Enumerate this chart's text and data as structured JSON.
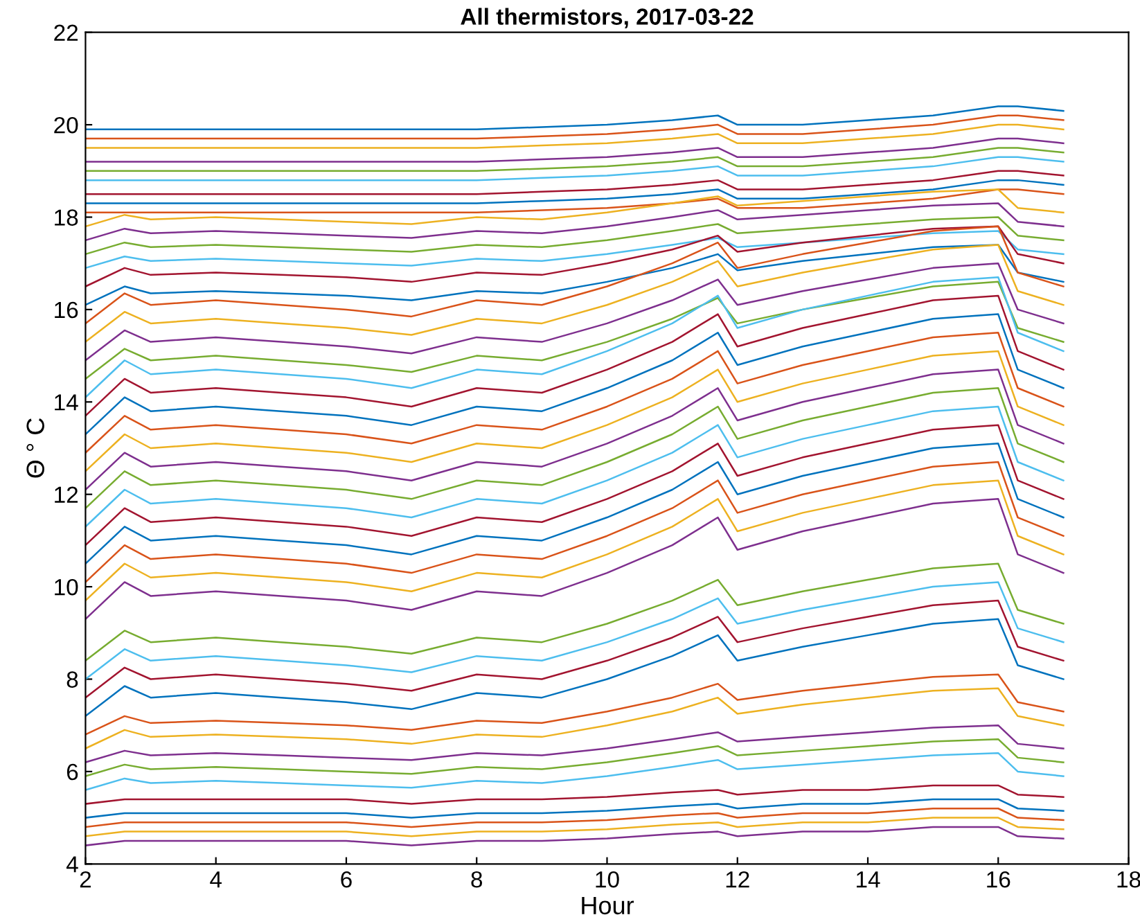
{
  "chart_data": {
    "type": "line",
    "title": "All thermistors, 2017-03-22",
    "xlabel": "Hour",
    "ylabel": "Θ ° C",
    "xlim": [
      2,
      18
    ],
    "xticks": [
      2,
      4,
      6,
      8,
      10,
      12,
      14,
      16,
      18
    ],
    "ylim": [
      4,
      22
    ],
    "yticks": [
      4,
      6,
      8,
      10,
      12,
      14,
      16,
      18,
      20,
      22
    ],
    "grid": false,
    "legend": false,
    "x": [
      2,
      2.6,
      3,
      4,
      5,
      6,
      7,
      8,
      9,
      10,
      11,
      11.7,
      12,
      13,
      14,
      15,
      16,
      16.3,
      17
    ],
    "series": [
      {
        "color": "#0072bd",
        "values": [
          19.9,
          19.9,
          19.9,
          19.9,
          19.9,
          19.9,
          19.9,
          19.9,
          19.95,
          20,
          20.1,
          20.2,
          20,
          20,
          20.1,
          20.2,
          20.4,
          20.4,
          20.3
        ]
      },
      {
        "color": "#d95319",
        "values": [
          19.7,
          19.7,
          19.7,
          19.7,
          19.7,
          19.7,
          19.7,
          19.7,
          19.75,
          19.8,
          19.9,
          20,
          19.8,
          19.8,
          19.9,
          20,
          20.2,
          20.2,
          20.1
        ]
      },
      {
        "color": "#edb120",
        "values": [
          19.5,
          19.5,
          19.5,
          19.5,
          19.5,
          19.5,
          19.5,
          19.5,
          19.55,
          19.6,
          19.7,
          19.8,
          19.6,
          19.6,
          19.7,
          19.8,
          20,
          20,
          19.9
        ]
      },
      {
        "color": "#7e2f8e",
        "values": [
          19.2,
          19.2,
          19.2,
          19.2,
          19.2,
          19.2,
          19.2,
          19.2,
          19.25,
          19.3,
          19.4,
          19.5,
          19.3,
          19.3,
          19.4,
          19.5,
          19.7,
          19.7,
          19.6
        ]
      },
      {
        "color": "#77ac30",
        "values": [
          19,
          19,
          19,
          19,
          19,
          19,
          19,
          19,
          19.05,
          19.1,
          19.2,
          19.3,
          19.1,
          19.1,
          19.2,
          19.3,
          19.5,
          19.5,
          19.4
        ]
      },
      {
        "color": "#4dbeee",
        "values": [
          18.8,
          18.8,
          18.8,
          18.8,
          18.8,
          18.8,
          18.8,
          18.8,
          18.85,
          18.9,
          19,
          19.1,
          18.9,
          18.9,
          19,
          19.1,
          19.3,
          19.3,
          19.2
        ]
      },
      {
        "color": "#a2142f",
        "values": [
          18.5,
          18.5,
          18.5,
          18.5,
          18.5,
          18.5,
          18.5,
          18.5,
          18.55,
          18.6,
          18.7,
          18.8,
          18.6,
          18.6,
          18.7,
          18.8,
          19,
          19,
          18.9
        ]
      },
      {
        "color": "#0072bd",
        "values": [
          18.3,
          18.3,
          18.3,
          18.3,
          18.3,
          18.3,
          18.3,
          18.3,
          18.35,
          18.4,
          18.5,
          18.6,
          18.4,
          18.4,
          18.5,
          18.6,
          18.8,
          18.8,
          18.7
        ]
      },
      {
        "color": "#d95319",
        "values": [
          18.1,
          18.1,
          18.1,
          18.1,
          18.1,
          18.1,
          18.1,
          18.1,
          18.15,
          18.2,
          18.3,
          18.4,
          18.2,
          18.2,
          18.3,
          18.4,
          18.6,
          18.6,
          18.5
        ]
      },
      {
        "color": "#edb120",
        "values": [
          17.8,
          18.05,
          17.95,
          18,
          17.95,
          17.9,
          17.85,
          18,
          17.95,
          18.1,
          18.3,
          18.45,
          18.25,
          18.35,
          18.45,
          18.55,
          18.6,
          18.2,
          18.1
        ]
      },
      {
        "color": "#7e2f8e",
        "values": [
          17.5,
          17.75,
          17.65,
          17.7,
          17.65,
          17.6,
          17.55,
          17.7,
          17.65,
          17.8,
          18,
          18.15,
          17.95,
          18.05,
          18.15,
          18.25,
          18.3,
          17.9,
          17.8
        ]
      },
      {
        "color": "#77ac30",
        "values": [
          17.2,
          17.45,
          17.35,
          17.4,
          17.35,
          17.3,
          17.25,
          17.4,
          17.35,
          17.5,
          17.7,
          17.85,
          17.65,
          17.75,
          17.85,
          17.95,
          18,
          17.6,
          17.5
        ]
      },
      {
        "color": "#4dbeee",
        "values": [
          16.9,
          17.15,
          17.05,
          17.1,
          17.05,
          17,
          16.95,
          17.1,
          17.05,
          17.2,
          17.4,
          17.55,
          17.35,
          17.45,
          17.55,
          17.65,
          17.7,
          17.3,
          17.2
        ]
      },
      {
        "color": "#a2142f",
        "values": [
          16.5,
          16.9,
          16.75,
          16.8,
          16.75,
          16.7,
          16.6,
          16.8,
          16.75,
          17,
          17.3,
          17.6,
          17.25,
          17.45,
          17.6,
          17.75,
          17.8,
          17.2,
          17
        ]
      },
      {
        "color": "#0072bd",
        "values": [
          16.1,
          16.5,
          16.35,
          16.4,
          16.35,
          16.3,
          16.2,
          16.4,
          16.35,
          16.6,
          16.9,
          17.2,
          16.85,
          17.05,
          17.2,
          17.35,
          17.4,
          16.8,
          16.6
        ]
      },
      {
        "color": "#d95319",
        "values": [
          15.7,
          16.35,
          16.1,
          16.2,
          16.1,
          16,
          15.85,
          16.2,
          16.1,
          16.5,
          17,
          17.45,
          16.9,
          17.2,
          17.45,
          17.7,
          17.8,
          16.8,
          16.5
        ]
      },
      {
        "color": "#edb120",
        "values": [
          15.3,
          15.95,
          15.7,
          15.8,
          15.7,
          15.6,
          15.45,
          15.8,
          15.7,
          16.1,
          16.6,
          17.05,
          16.5,
          16.8,
          17.05,
          17.3,
          17.4,
          16.4,
          16.1
        ]
      },
      {
        "color": "#7e2f8e",
        "values": [
          14.9,
          15.55,
          15.3,
          15.4,
          15.3,
          15.2,
          15.05,
          15.4,
          15.3,
          15.7,
          16.2,
          16.65,
          16.1,
          16.4,
          16.65,
          16.9,
          17,
          16,
          15.7
        ]
      },
      {
        "color": "#77ac30",
        "values": [
          14.5,
          15.15,
          14.9,
          15,
          14.9,
          14.8,
          14.65,
          15,
          14.9,
          15.3,
          15.8,
          16.25,
          15.7,
          16,
          16.25,
          16.5,
          16.6,
          15.6,
          15.3
        ]
      },
      {
        "color": "#4dbeee",
        "values": [
          14.1,
          14.9,
          14.6,
          14.7,
          14.6,
          14.5,
          14.3,
          14.7,
          14.6,
          15.1,
          15.7,
          16.3,
          15.6,
          16,
          16.3,
          16.6,
          16.7,
          15.5,
          15.1
        ]
      },
      {
        "color": "#a2142f",
        "values": [
          13.7,
          14.5,
          14.2,
          14.3,
          14.2,
          14.1,
          13.9,
          14.3,
          14.2,
          14.7,
          15.3,
          15.9,
          15.2,
          15.6,
          15.9,
          16.2,
          16.3,
          15.1,
          14.7
        ]
      },
      {
        "color": "#0072bd",
        "values": [
          13.3,
          14.1,
          13.8,
          13.9,
          13.8,
          13.7,
          13.5,
          13.9,
          13.8,
          14.3,
          14.9,
          15.5,
          14.8,
          15.2,
          15.5,
          15.8,
          15.9,
          14.7,
          14.3
        ]
      },
      {
        "color": "#d95319",
        "values": [
          12.9,
          13.7,
          13.4,
          13.5,
          13.4,
          13.3,
          13.1,
          13.5,
          13.4,
          13.9,
          14.5,
          15.1,
          14.4,
          14.8,
          15.1,
          15.4,
          15.5,
          14.3,
          13.9
        ]
      },
      {
        "color": "#edb120",
        "values": [
          12.5,
          13.3,
          13,
          13.1,
          13,
          12.9,
          12.7,
          13.1,
          13,
          13.5,
          14.1,
          14.7,
          14,
          14.4,
          14.7,
          15,
          15.1,
          13.9,
          13.5
        ]
      },
      {
        "color": "#7e2f8e",
        "values": [
          12.1,
          12.9,
          12.6,
          12.7,
          12.6,
          12.5,
          12.3,
          12.7,
          12.6,
          13.1,
          13.7,
          14.3,
          13.6,
          14,
          14.3,
          14.6,
          14.7,
          13.5,
          13.1
        ]
      },
      {
        "color": "#77ac30",
        "values": [
          11.7,
          12.5,
          12.2,
          12.3,
          12.2,
          12.1,
          11.9,
          12.3,
          12.2,
          12.7,
          13.3,
          13.9,
          13.2,
          13.6,
          13.9,
          14.2,
          14.3,
          13.1,
          12.7
        ]
      },
      {
        "color": "#4dbeee",
        "values": [
          11.3,
          12.1,
          11.8,
          11.9,
          11.8,
          11.7,
          11.5,
          11.9,
          11.8,
          12.3,
          12.9,
          13.5,
          12.8,
          13.2,
          13.5,
          13.8,
          13.9,
          12.7,
          12.3
        ]
      },
      {
        "color": "#a2142f",
        "values": [
          10.9,
          11.7,
          11.4,
          11.5,
          11.4,
          11.3,
          11.1,
          11.5,
          11.4,
          11.9,
          12.5,
          13.1,
          12.4,
          12.8,
          13.1,
          13.4,
          13.5,
          12.3,
          11.9
        ]
      },
      {
        "color": "#0072bd",
        "values": [
          10.5,
          11.3,
          11,
          11.1,
          11,
          10.9,
          10.7,
          11.1,
          11,
          11.5,
          12.1,
          12.7,
          12,
          12.4,
          12.7,
          13,
          13.1,
          11.9,
          11.5
        ]
      },
      {
        "color": "#d95319",
        "values": [
          10.1,
          10.9,
          10.6,
          10.7,
          10.6,
          10.5,
          10.3,
          10.7,
          10.6,
          11.1,
          11.7,
          12.3,
          11.6,
          12,
          12.3,
          12.6,
          12.7,
          11.5,
          11.1
        ]
      },
      {
        "color": "#edb120",
        "values": [
          9.7,
          10.5,
          10.2,
          10.3,
          10.2,
          10.1,
          9.9,
          10.3,
          10.2,
          10.7,
          11.3,
          11.9,
          11.2,
          11.6,
          11.9,
          12.2,
          12.3,
          11.1,
          10.7
        ]
      },
      {
        "color": "#7e2f8e",
        "values": [
          9.3,
          10.1,
          9.8,
          9.9,
          9.8,
          9.7,
          9.5,
          9.9,
          9.8,
          10.3,
          10.9,
          11.5,
          10.8,
          11.2,
          11.5,
          11.8,
          11.9,
          10.7,
          10.3
        ]
      },
      {
        "color": "#77ac30",
        "values": [
          8.4,
          9.05,
          8.8,
          8.9,
          8.8,
          8.7,
          8.55,
          8.9,
          8.8,
          9.2,
          9.7,
          10.15,
          9.6,
          9.9,
          10.15,
          10.4,
          10.5,
          9.5,
          9.2
        ]
      },
      {
        "color": "#4dbeee",
        "values": [
          8,
          8.65,
          8.4,
          8.5,
          8.4,
          8.3,
          8.15,
          8.5,
          8.4,
          8.8,
          9.3,
          9.75,
          9.2,
          9.5,
          9.75,
          10,
          10.1,
          9.1,
          8.8
        ]
      },
      {
        "color": "#a2142f",
        "values": [
          7.6,
          8.25,
          8,
          8.1,
          8,
          7.9,
          7.75,
          8.1,
          8,
          8.4,
          8.9,
          9.35,
          8.8,
          9.1,
          9.35,
          9.6,
          9.7,
          8.7,
          8.4
        ]
      },
      {
        "color": "#0072bd",
        "values": [
          7.2,
          7.85,
          7.6,
          7.7,
          7.6,
          7.5,
          7.35,
          7.7,
          7.6,
          8,
          8.5,
          8.95,
          8.4,
          8.7,
          8.95,
          9.2,
          9.3,
          8.3,
          8
        ]
      },
      {
        "color": "#d95319",
        "values": [
          6.8,
          7.2,
          7.05,
          7.1,
          7.05,
          7,
          6.9,
          7.1,
          7.05,
          7.3,
          7.6,
          7.9,
          7.55,
          7.75,
          7.9,
          8.05,
          8.1,
          7.5,
          7.3
        ]
      },
      {
        "color": "#edb120",
        "values": [
          6.5,
          6.9,
          6.75,
          6.8,
          6.75,
          6.7,
          6.6,
          6.8,
          6.75,
          7,
          7.3,
          7.6,
          7.25,
          7.45,
          7.6,
          7.75,
          7.8,
          7.2,
          7
        ]
      },
      {
        "color": "#7e2f8e",
        "values": [
          6.2,
          6.45,
          6.35,
          6.4,
          6.35,
          6.3,
          6.25,
          6.4,
          6.35,
          6.5,
          6.7,
          6.85,
          6.65,
          6.75,
          6.85,
          6.95,
          7,
          6.6,
          6.5
        ]
      },
      {
        "color": "#77ac30",
        "values": [
          5.9,
          6.15,
          6.05,
          6.1,
          6.05,
          6,
          5.95,
          6.1,
          6.05,
          6.2,
          6.4,
          6.55,
          6.35,
          6.45,
          6.55,
          6.65,
          6.7,
          6.3,
          6.2
        ]
      },
      {
        "color": "#4dbeee",
        "values": [
          5.6,
          5.85,
          5.75,
          5.8,
          5.75,
          5.7,
          5.65,
          5.8,
          5.75,
          5.9,
          6.1,
          6.25,
          6.05,
          6.15,
          6.25,
          6.35,
          6.4,
          6,
          5.9
        ]
      },
      {
        "color": "#a2142f",
        "values": [
          5.3,
          5.4,
          5.4,
          5.4,
          5.4,
          5.4,
          5.3,
          5.4,
          5.4,
          5.45,
          5.55,
          5.6,
          5.5,
          5.6,
          5.6,
          5.7,
          5.7,
          5.5,
          5.45
        ]
      },
      {
        "color": "#0072bd",
        "values": [
          5,
          5.1,
          5.1,
          5.1,
          5.1,
          5.1,
          5,
          5.1,
          5.1,
          5.15,
          5.25,
          5.3,
          5.2,
          5.3,
          5.3,
          5.4,
          5.4,
          5.2,
          5.15
        ]
      },
      {
        "color": "#d95319",
        "values": [
          4.8,
          4.9,
          4.9,
          4.9,
          4.9,
          4.9,
          4.8,
          4.9,
          4.9,
          4.95,
          5.05,
          5.1,
          5,
          5.1,
          5.1,
          5.2,
          5.2,
          5,
          4.95
        ]
      },
      {
        "color": "#edb120",
        "values": [
          4.6,
          4.7,
          4.7,
          4.7,
          4.7,
          4.7,
          4.6,
          4.7,
          4.7,
          4.75,
          4.85,
          4.9,
          4.8,
          4.9,
          4.9,
          5,
          5,
          4.8,
          4.75
        ]
      },
      {
        "color": "#7e2f8e",
        "values": [
          4.4,
          4.5,
          4.5,
          4.5,
          4.5,
          4.5,
          4.4,
          4.5,
          4.5,
          4.55,
          4.65,
          4.7,
          4.6,
          4.7,
          4.7,
          4.8,
          4.8,
          4.6,
          4.55
        ]
      }
    ]
  }
}
